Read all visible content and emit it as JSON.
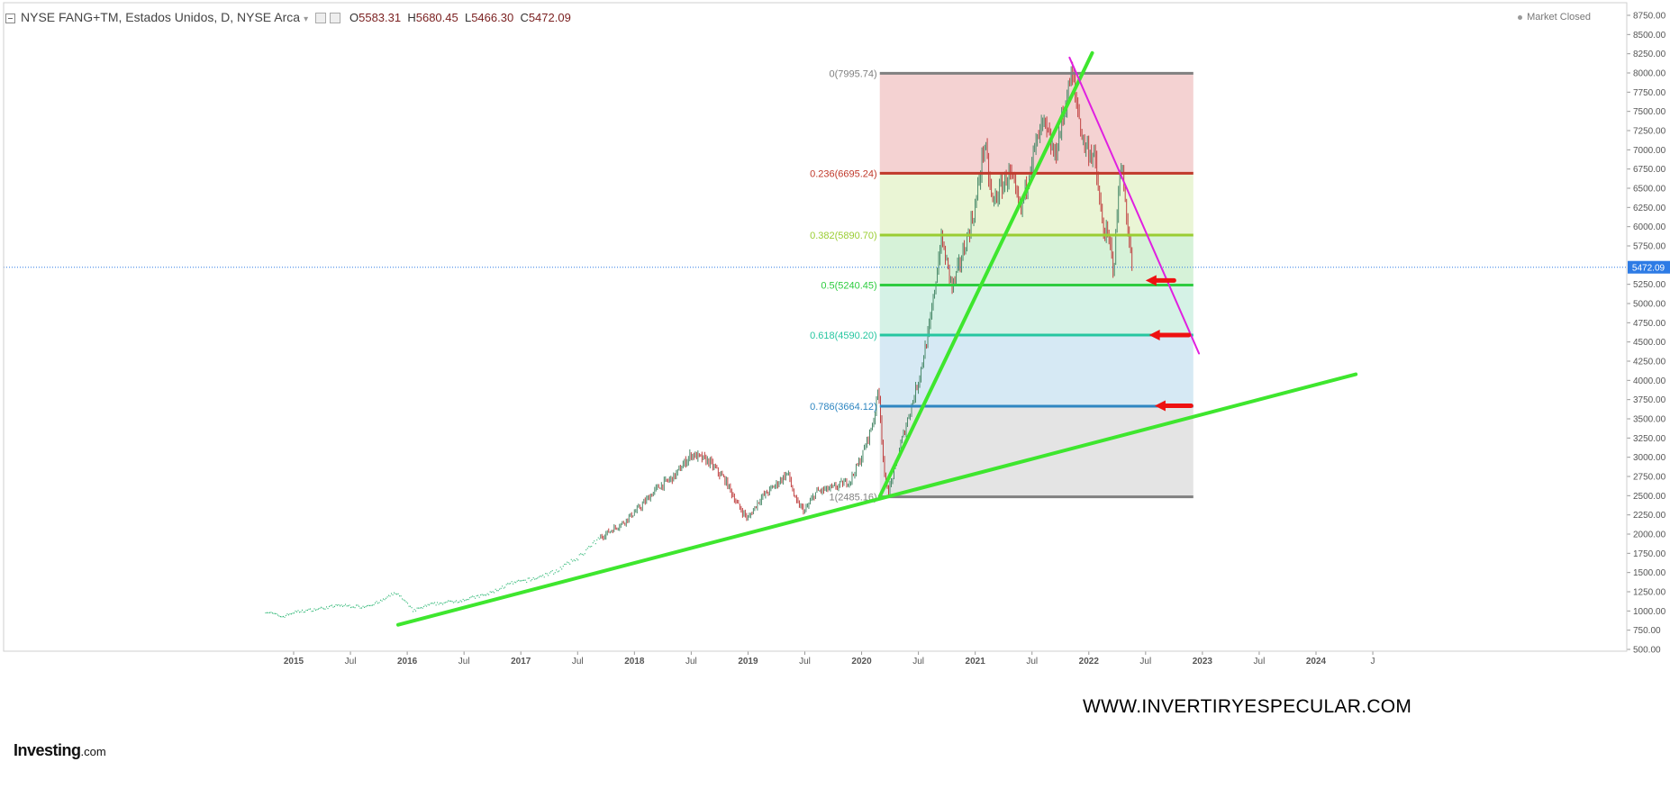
{
  "header": {
    "title": "NYSE FANG+TM, Estados Unidos, D, NYSE Arca",
    "open_label": "O",
    "open": "5583.31",
    "high_label": "H",
    "high": "5680.45",
    "low_label": "L",
    "low": "5466.30",
    "close_label": "C",
    "close": "5472.09"
  },
  "market_status": "Market Closed",
  "watermark": "WWW.INVERTIRYESPECULAR.COM",
  "logo": {
    "main": "Investing",
    "suffix": ".com"
  },
  "colors": {
    "fib_0": "#808080",
    "fib_0236": "#c0392b",
    "fib_0382": "#9acd32",
    "fib_05": "#2ecc40",
    "fib_0618": "#26c6a0",
    "fib_0786": "#2e86c1",
    "fib_1": "#808080",
    "trendline": "#3ee62e",
    "resistance": "#e020e0",
    "arrow": "#ee1111",
    "last_price_bg": "#2d7be5",
    "candle_up": "#4a8a6a",
    "candle_down": "#c04040"
  },
  "chart_data": {
    "type": "line",
    "title": "NYSE FANG+TM, Estados Unidos, D, NYSE Arca",
    "y_axis": {
      "side": "right",
      "ylim": [
        500,
        8750
      ],
      "ticks": [
        500,
        750,
        1000,
        1250,
        1500,
        1750,
        2000,
        2250,
        2500,
        2750,
        3000,
        3250,
        3500,
        3750,
        4000,
        4250,
        4500,
        4750,
        5000,
        5250,
        5500,
        5750,
        6000,
        6250,
        6500,
        6750,
        7000,
        7250,
        7500,
        7750,
        8000,
        8250,
        8500,
        8750
      ],
      "tick_labels": [
        "500.00",
        "750.00",
        "1000.00",
        "1250.00",
        "1500.00",
        "1750.00",
        "2000.00",
        "2250.00",
        "2500.00",
        "2750.00",
        "3000.00",
        "3250.00",
        "3500.00",
        "3750.00",
        "4000.00",
        "4250.00",
        "4500.00",
        "4750.00",
        "5000.00",
        "5250.00",
        "5500.00",
        "5750.00",
        "6000.00",
        "6250.00",
        "6500.00",
        "6750.00",
        "7000.00",
        "7250.00",
        "7500.00",
        "7750.00",
        "8000.00",
        "8250.00",
        "8500.00",
        "8750.00"
      ]
    },
    "x_axis": {
      "range": [
        2014.0,
        2024.6
      ],
      "ticks": [
        {
          "t": 2015.0,
          "label": "2015",
          "bold": true
        },
        {
          "t": 2015.5,
          "label": "Jul",
          "bold": false
        },
        {
          "t": 2016.0,
          "label": "2016",
          "bold": true
        },
        {
          "t": 2016.5,
          "label": "Jul",
          "bold": false
        },
        {
          "t": 2017.0,
          "label": "2017",
          "bold": true
        },
        {
          "t": 2017.5,
          "label": "Jul",
          "bold": false
        },
        {
          "t": 2018.0,
          "label": "2018",
          "bold": true
        },
        {
          "t": 2018.5,
          "label": "Jul",
          "bold": false
        },
        {
          "t": 2019.0,
          "label": "2019",
          "bold": true
        },
        {
          "t": 2019.5,
          "label": "Jul",
          "bold": false
        },
        {
          "t": 2020.0,
          "label": "2020",
          "bold": true
        },
        {
          "t": 2020.5,
          "label": "Jul",
          "bold": false
        },
        {
          "t": 2021.0,
          "label": "2021",
          "bold": true
        },
        {
          "t": 2021.5,
          "label": "Jul",
          "bold": false
        },
        {
          "t": 2022.0,
          "label": "2022",
          "bold": true
        },
        {
          "t": 2022.5,
          "label": "Jul",
          "bold": false
        },
        {
          "t": 2023.0,
          "label": "2023",
          "bold": true
        },
        {
          "t": 2023.5,
          "label": "Jul",
          "bold": false
        },
        {
          "t": 2024.0,
          "label": "2024",
          "bold": true
        },
        {
          "t": 2024.5,
          "label": "J",
          "bold": false
        }
      ]
    },
    "last_price": {
      "value": 5472.09,
      "label": "5472.09"
    },
    "series": [
      {
        "style": "price",
        "points": [
          [
            2014.75,
            1000
          ],
          [
            2014.9,
            930
          ],
          [
            2015.0,
            990
          ],
          [
            2015.2,
            1030
          ],
          [
            2015.4,
            1080
          ],
          [
            2015.6,
            1060
          ],
          [
            2015.75,
            1120
          ],
          [
            2015.9,
            1250
          ],
          [
            2016.05,
            1010
          ],
          [
            2016.2,
            1090
          ],
          [
            2016.45,
            1140
          ],
          [
            2016.7,
            1220
          ],
          [
            2016.9,
            1360
          ],
          [
            2017.1,
            1420
          ],
          [
            2017.3,
            1520
          ],
          [
            2017.5,
            1700
          ],
          [
            2017.7,
            1960
          ],
          [
            2017.9,
            2150
          ],
          [
            2018.05,
            2350
          ],
          [
            2018.2,
            2600
          ],
          [
            2018.35,
            2750
          ],
          [
            2018.5,
            3040
          ],
          [
            2018.65,
            2950
          ],
          [
            2018.8,
            2700
          ],
          [
            2018.92,
            2350
          ],
          [
            2019.0,
            2200
          ],
          [
            2019.1,
            2450
          ],
          [
            2019.25,
            2650
          ],
          [
            2019.35,
            2800
          ],
          [
            2019.42,
            2420
          ],
          [
            2019.5,
            2300
          ],
          [
            2019.6,
            2550
          ],
          [
            2019.75,
            2600
          ],
          [
            2019.9,
            2700
          ],
          [
            2020.0,
            3000
          ],
          [
            2020.1,
            3450
          ],
          [
            2020.15,
            3900
          ],
          [
            2020.2,
            2750
          ],
          [
            2020.24,
            2560
          ],
          [
            2020.35,
            3200
          ],
          [
            2020.5,
            4000
          ],
          [
            2020.6,
            4700
          ],
          [
            2020.7,
            5850
          ],
          [
            2020.8,
            5200
          ],
          [
            2020.9,
            5700
          ],
          [
            2021.0,
            6250
          ],
          [
            2021.08,
            7100
          ],
          [
            2021.15,
            6300
          ],
          [
            2021.3,
            6700
          ],
          [
            2021.4,
            6200
          ],
          [
            2021.5,
            6900
          ],
          [
            2021.6,
            7350
          ],
          [
            2021.7,
            6900
          ],
          [
            2021.8,
            7650
          ],
          [
            2021.85,
            8000
          ],
          [
            2021.95,
            7100
          ],
          [
            2022.05,
            6900
          ],
          [
            2022.12,
            6000
          ],
          [
            2022.18,
            5800
          ],
          [
            2022.22,
            5450
          ],
          [
            2022.28,
            6900
          ],
          [
            2022.35,
            5900
          ],
          [
            2022.38,
            5472
          ]
        ]
      }
    ],
    "fibonacci": {
      "t_start": 2020.16,
      "t_end": 2022.92,
      "levels": [
        {
          "ratio": 0,
          "value": 7995.74,
          "label": "0(7995.74)",
          "fill": "#f4d2d2",
          "color": "#808080"
        },
        {
          "ratio": 0.236,
          "value": 6695.24,
          "label": "0.236(6695.24)",
          "fill": "#eaf5d5",
          "color": "#c0392b"
        },
        {
          "ratio": 0.382,
          "value": 5890.7,
          "label": "0.382(5890.70)",
          "fill": "#d6f2d8",
          "color": "#9acd32"
        },
        {
          "ratio": 0.5,
          "value": 5240.45,
          "label": "0.5(5240.45)",
          "fill": "#d5f2e6",
          "color": "#2ecc40"
        },
        {
          "ratio": 0.618,
          "value": 4590.2,
          "label": "0.618(4590.20)",
          "fill": "#d6e9f4",
          "color": "#26c6a0"
        },
        {
          "ratio": 0.786,
          "value": 3664.12,
          "label": "0.786(3664.12)",
          "fill": "#e4e4e4",
          "color": "#2e86c1"
        },
        {
          "ratio": 1,
          "value": 2485.16,
          "label": "1(2485.16)",
          "fill": null,
          "color": "#808080"
        }
      ]
    },
    "trendlines": [
      {
        "name": "support",
        "from": [
          2015.92,
          820
        ],
        "to": [
          2024.35,
          4080
        ]
      },
      {
        "name": "steep-support",
        "from": [
          2020.16,
          2490
        ],
        "to": [
          2022.03,
          8260
        ]
      },
      {
        "name": "resistance",
        "from": [
          2021.83,
          8200
        ],
        "to": [
          2022.97,
          4350
        ]
      }
    ],
    "arrows": [
      {
        "value": 5300,
        "t_from": 2022.75,
        "t_to": 2022.5
      },
      {
        "value": 4590,
        "t_from": 2022.88,
        "t_to": 2022.53
      },
      {
        "value": 3670,
        "t_from": 2022.9,
        "t_to": 2022.58
      }
    ]
  }
}
